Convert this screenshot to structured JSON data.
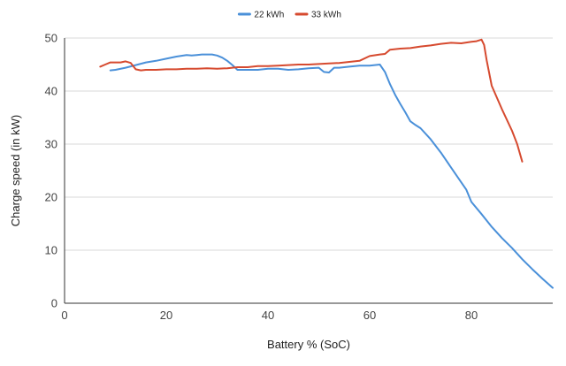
{
  "chart_data": {
    "type": "line",
    "title": "",
    "xlabel": "Battery % (SoC)",
    "ylabel": "Charge speed (in kW)",
    "xlim": [
      0,
      96
    ],
    "ylim": [
      0,
      50
    ],
    "x_ticks": [
      0,
      20,
      40,
      60,
      80
    ],
    "y_ticks": [
      0,
      10,
      20,
      30,
      40,
      50
    ],
    "x_tick_labels": [
      "0",
      "20",
      "40",
      "60",
      "80"
    ],
    "y_tick_labels": [
      "0",
      "10",
      "20",
      "30",
      "40",
      "50"
    ],
    "grid": "horizontal",
    "legend_position": "top-center",
    "series": [
      {
        "name": "22 kWh",
        "color": "#4a90d9",
        "x": [
          9,
          10,
          12,
          14,
          16,
          18,
          20,
          22,
          24,
          25,
          26,
          27,
          28,
          29,
          30,
          31,
          32,
          33,
          34,
          36,
          38,
          40,
          42,
          44,
          46,
          48,
          50,
          51,
          52,
          53,
          54,
          56,
          58,
          60,
          61,
          62,
          63,
          64,
          65,
          66,
          67,
          68,
          69,
          70,
          72,
          74,
          76,
          78,
          79,
          80,
          82,
          84,
          86,
          88,
          90,
          92,
          94,
          96
        ],
        "values": [
          43.9,
          44.0,
          44.4,
          44.9,
          45.4,
          45.7,
          46.1,
          46.5,
          46.8,
          46.7,
          46.8,
          46.9,
          46.9,
          46.9,
          46.7,
          46.3,
          45.7,
          44.9,
          44.0,
          44.0,
          44.0,
          44.2,
          44.2,
          44.0,
          44.1,
          44.3,
          44.4,
          43.6,
          43.5,
          44.4,
          44.4,
          44.6,
          44.8,
          44.8,
          44.9,
          45.0,
          43.6,
          41.3,
          39.3,
          37.6,
          36.0,
          34.3,
          33.6,
          33.0,
          30.9,
          28.4,
          25.6,
          22.8,
          21.4,
          19.1,
          16.8,
          14.4,
          12.3,
          10.4,
          8.3,
          6.4,
          4.6,
          2.9
        ]
      },
      {
        "name": "33 kWh",
        "color": "#d64a2f",
        "x": [
          7,
          8,
          9,
          10,
          11,
          12,
          13,
          14,
          15,
          16,
          18,
          20,
          22,
          24,
          26,
          28,
          30,
          32,
          34,
          36,
          38,
          40,
          42,
          44,
          46,
          48,
          50,
          52,
          54,
          56,
          58,
          60,
          62,
          63,
          64,
          66,
          68,
          70,
          72,
          74,
          76,
          78,
          80,
          81,
          82,
          82.5,
          83,
          84,
          86,
          88,
          89,
          90
        ],
        "values": [
          44.6,
          45.0,
          45.4,
          45.4,
          45.4,
          45.6,
          45.3,
          44.1,
          43.9,
          44.0,
          44.0,
          44.1,
          44.1,
          44.2,
          44.2,
          44.3,
          44.2,
          44.3,
          44.5,
          44.5,
          44.7,
          44.7,
          44.8,
          44.9,
          45.0,
          45.0,
          45.1,
          45.2,
          45.3,
          45.5,
          45.7,
          46.6,
          46.9,
          47.0,
          47.8,
          48.0,
          48.1,
          48.4,
          48.6,
          48.9,
          49.1,
          49.0,
          49.3,
          49.4,
          49.7,
          48.7,
          45.8,
          41.0,
          36.6,
          32.5,
          30.0,
          26.7
        ]
      }
    ]
  }
}
